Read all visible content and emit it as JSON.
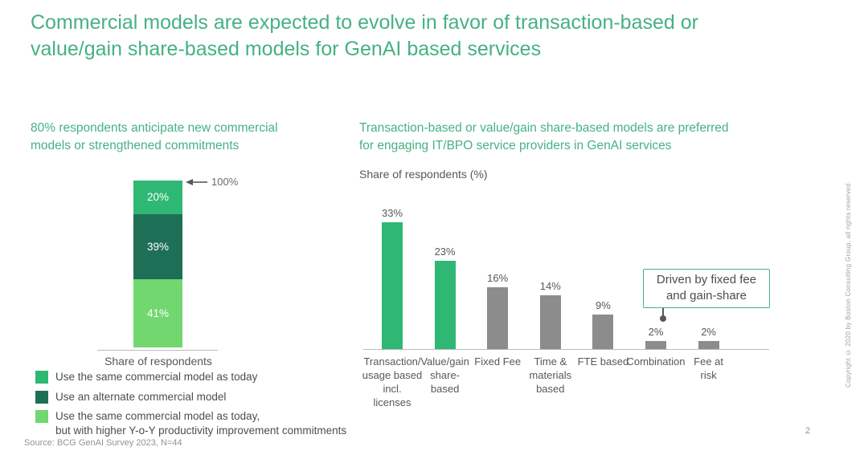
{
  "slide": {
    "title_line1": "Commercial models are expected to evolve in favor of transaction-based or",
    "title_line2": "value/gain share-based models for GenAI based services",
    "source": "Source: BCG GenAI Survey 2023, N=44",
    "copyright": "Copyright © 2020 by Boston Consulting Group, all rights reserved.",
    "page_number": "2"
  },
  "left_panel": {
    "heading_line1": "80% respondents anticipate new commercial",
    "heading_line2": "models or strengthened commitments",
    "axis_label": "Share of respondents",
    "total_label": "100%"
  },
  "right_panel": {
    "heading_line1": "Transaction-based or value/gain share-based models are preferred",
    "heading_line2": "for engaging IT/BPO service providers in GenAI services",
    "axis_label": "Share of respondents (%)",
    "annotation_line1": "Driven by fixed fee",
    "annotation_line2": "and gain-share"
  },
  "legend": {
    "items": [
      {
        "label": "Use the same commercial model as today",
        "label2": "",
        "color": "#2eb873"
      },
      {
        "label": "Use an alternate commercial model",
        "label2": "",
        "color": "#1d6f56"
      },
      {
        "label": "Use the same commercial model as today,",
        "label2": "but with higher Y-o-Y productivity improvement commitments",
        "color": "#72d76f"
      }
    ]
  },
  "colors": {
    "accent_green": "#46b183",
    "bar_green": "#2eb873",
    "bar_dark_green": "#1d6f56",
    "bar_light_green": "#72d76f",
    "bar_gray": "#8c8c8c"
  },
  "chart_data": [
    {
      "type": "bar",
      "subtype": "stacked-column",
      "title": "80% respondents anticipate new commercial models or strengthened commitments",
      "categories": [
        "Share of respondents"
      ],
      "series": [
        {
          "name": "Use the same commercial model as today",
          "values": [
            20
          ],
          "label": "20%",
          "color": "#2eb873"
        },
        {
          "name": "Use an alternate commercial model",
          "values": [
            39
          ],
          "label": "39%",
          "color": "#1d6f56"
        },
        {
          "name": "Use the same commercial model as today, but with higher Y-o-Y productivity improvement commitments",
          "values": [
            41
          ],
          "label": "41%",
          "color": "#72d76f"
        }
      ],
      "total": 100,
      "total_label": "100%",
      "ylim": [
        0,
        100
      ],
      "legend_position": "bottom",
      "grid": false
    },
    {
      "type": "bar",
      "title": "Transaction-based or value/gain share-based models are preferred for engaging IT/BPO service providers in GenAI services",
      "ylabel": "Share of respondents (%)",
      "categories": [
        "Transaction/usage based incl. licenses",
        "Value/gain share-based",
        "Fixed Fee",
        "Time & materials based",
        "FTE based",
        "Combination",
        "Fee at risk"
      ],
      "category_lines": [
        [
          "Transaction/",
          "usage based",
          "incl.",
          "licenses"
        ],
        [
          "Value/gain",
          "share-",
          "based"
        ],
        [
          "Fixed Fee"
        ],
        [
          "Time &",
          "materials",
          "based"
        ],
        [
          "FTE based"
        ],
        [
          "Combination"
        ],
        [
          "Fee at",
          "risk"
        ]
      ],
      "values": [
        33,
        23,
        16,
        14,
        9,
        2,
        2
      ],
      "value_labels": [
        "33%",
        "23%",
        "16%",
        "14%",
        "9%",
        "2%",
        "2%"
      ],
      "bar_colors": [
        "#2eb873",
        "#2eb873",
        "#8c8c8c",
        "#8c8c8c",
        "#8c8c8c",
        "#8c8c8c",
        "#8c8c8c"
      ],
      "annotation": {
        "text": "Driven by fixed fee and gain-share",
        "target_categories": [
          "Combination",
          "Fee at risk"
        ]
      },
      "ylim": [
        0,
        35
      ],
      "grid": false
    }
  ]
}
